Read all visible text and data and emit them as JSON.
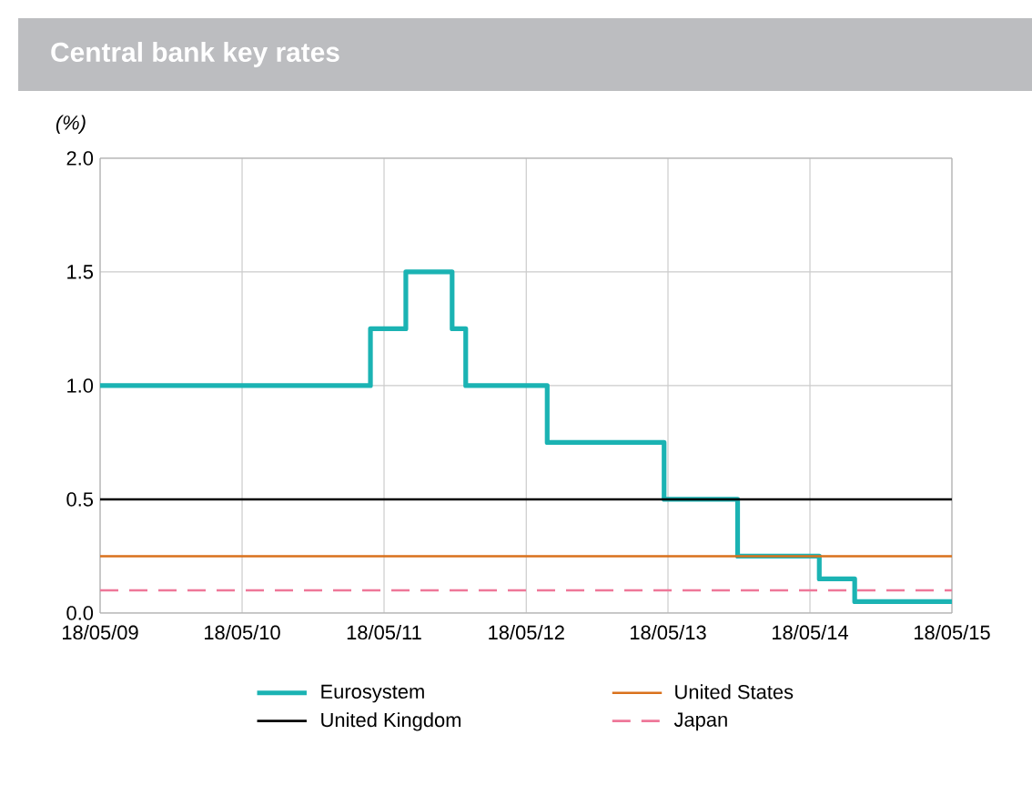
{
  "chart_data": {
    "type": "line",
    "title": "Central bank key rates",
    "ylabel": "(%)",
    "x": [
      "2009-05-18",
      "2015-05-18"
    ],
    "xlim": [
      "2009-05-18",
      "2015-05-18"
    ],
    "xticks": [
      {
        "value": "2009-05-18",
        "label": "18/05/09"
      },
      {
        "value": "2010-05-18",
        "label": "18/05/10"
      },
      {
        "value": "2011-05-18",
        "label": "18/05/11"
      },
      {
        "value": "2012-05-18",
        "label": "18/05/12"
      },
      {
        "value": "2013-05-18",
        "label": "18/05/13"
      },
      {
        "value": "2014-05-18",
        "label": "18/05/14"
      },
      {
        "value": "2015-05-18",
        "label": "18/05/15"
      }
    ],
    "ylim": [
      0,
      2
    ],
    "yticks": [
      {
        "value": 0,
        "label": "0.0"
      },
      {
        "value": 0.5,
        "label": "0.5"
      },
      {
        "value": 1,
        "label": "1.0"
      },
      {
        "value": 1.5,
        "label": "1.5"
      },
      {
        "value": 2,
        "label": "2.0"
      }
    ],
    "grid": true,
    "legend": "bottom",
    "series": [
      {
        "name": "Eurosystem",
        "type": "step",
        "color": "#1bb3b3",
        "x": [
          "2009-05-18",
          "2011-04-13",
          "2011-07-13",
          "2011-11-09",
          "2011-12-14",
          "2012-07-11",
          "2013-05-08",
          "2013-11-13",
          "2014-06-11",
          "2014-09-10",
          "2015-05-18"
        ],
        "values": [
          1.0,
          1.25,
          1.5,
          1.25,
          1.0,
          0.75,
          0.5,
          0.25,
          0.15,
          0.05,
          0.05
        ]
      },
      {
        "name": "United States",
        "color": "#d9711c",
        "values": [
          0.25,
          0.25
        ]
      },
      {
        "name": "United Kingdom",
        "color": "#000000",
        "values": [
          0.5,
          0.5
        ]
      },
      {
        "name": "Japan",
        "color": "#ee7799",
        "line_style": "dashed",
        "values": [
          0.1,
          0.1
        ]
      }
    ]
  }
}
